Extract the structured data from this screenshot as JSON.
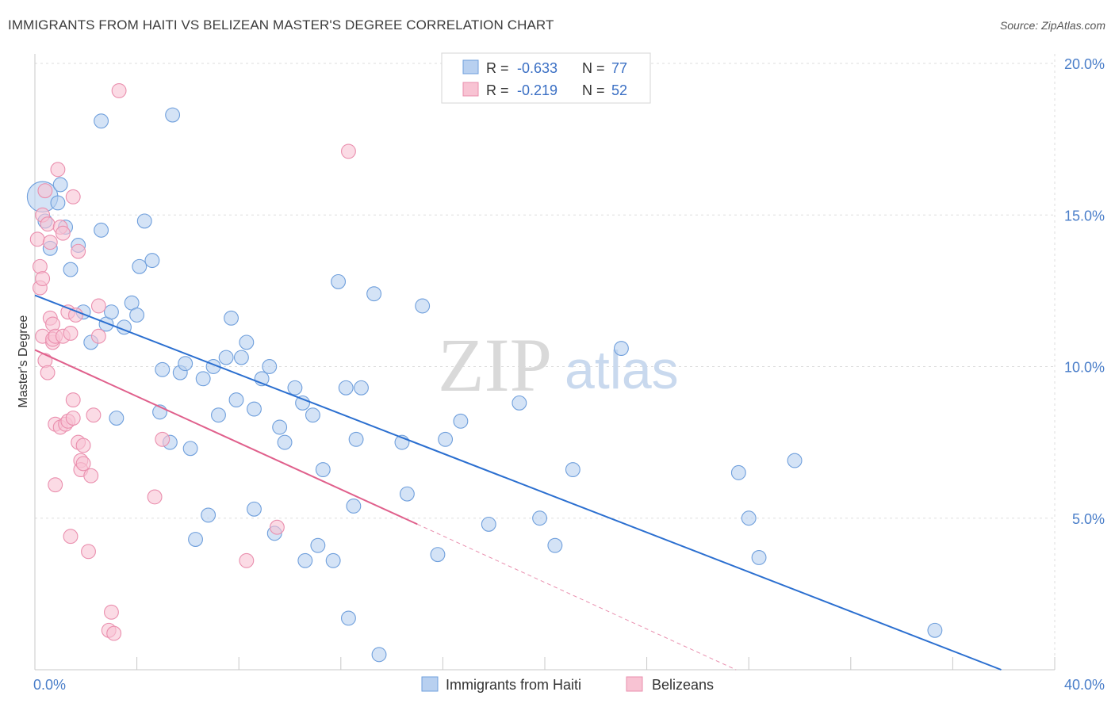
{
  "header": {
    "title": "IMMIGRANTS FROM HAITI VS BELIZEAN MASTER'S DEGREE CORRELATION CHART",
    "source": "Source: ZipAtlas.com"
  },
  "watermark": {
    "zip": "ZIP",
    "atlas": "atlas"
  },
  "colors": {
    "blue_fill": "#b8d0f0",
    "blue_stroke": "#6f9fdc",
    "blue_line": "#2b6fd0",
    "pink_fill": "#f8c3d3",
    "pink_stroke": "#ea8fae",
    "pink_line": "#e0608c",
    "grid": "#dddddd",
    "tick_text": "#4a7ec9"
  },
  "legend_top": {
    "r_label": "R =",
    "n_label": "N =",
    "rows": [
      {
        "r": "-0.633",
        "n": "77"
      },
      {
        "r": "-0.219",
        "n": "52"
      }
    ]
  },
  "legend_bottom": [
    "Immigrants from Haiti",
    "Belizeans"
  ],
  "chart_data": {
    "type": "scatter",
    "ylabel": "Master's Degree",
    "xlim": [
      0,
      40
    ],
    "ylim": [
      0,
      20
    ],
    "x_tick_labels": [
      {
        "value": 0,
        "label": "0.0%"
      },
      {
        "value": 40,
        "label": "40.0%"
      }
    ],
    "y_tick_labels": [
      {
        "value": 5,
        "label": "5.0%"
      },
      {
        "value": 10,
        "label": "10.0%"
      },
      {
        "value": 15,
        "label": "15.0%"
      },
      {
        "value": 20,
        "label": "20.0%"
      }
    ],
    "grid": true,
    "legend_position": "top-center",
    "series": [
      {
        "name": "Immigrants from Haiti",
        "r": -0.633,
        "n": 77,
        "trend": {
          "x": [
            0,
            37.9
          ],
          "y": [
            12.35,
            0
          ]
        },
        "points": [
          [
            0.3,
            15.6,
            26
          ],
          [
            0.4,
            14.8,
            12
          ],
          [
            0.6,
            13.9,
            12
          ],
          [
            0.9,
            15.4,
            12
          ],
          [
            1.0,
            16.0,
            12
          ],
          [
            1.2,
            14.6,
            12
          ],
          [
            1.4,
            13.2,
            12
          ],
          [
            1.7,
            14.0,
            12
          ],
          [
            1.9,
            11.8,
            12
          ],
          [
            2.2,
            10.8,
            12
          ],
          [
            2.6,
            18.1,
            12
          ],
          [
            2.6,
            14.5,
            12
          ],
          [
            2.8,
            11.4,
            12
          ],
          [
            3.0,
            11.8,
            12
          ],
          [
            3.2,
            8.3,
            12
          ],
          [
            3.5,
            11.3,
            12
          ],
          [
            3.8,
            12.1,
            12
          ],
          [
            4.0,
            11.7,
            12
          ],
          [
            4.1,
            13.3,
            12
          ],
          [
            4.3,
            14.8,
            12
          ],
          [
            4.6,
            13.5,
            12
          ],
          [
            4.9,
            8.5,
            12
          ],
          [
            5.0,
            9.9,
            12
          ],
          [
            5.3,
            7.5,
            12
          ],
          [
            5.4,
            18.3,
            12
          ],
          [
            5.7,
            9.8,
            12
          ],
          [
            5.9,
            10.1,
            12
          ],
          [
            6.1,
            7.3,
            12
          ],
          [
            6.3,
            4.3,
            12
          ],
          [
            6.6,
            9.6,
            12
          ],
          [
            6.8,
            5.1,
            12
          ],
          [
            7.0,
            10.0,
            12
          ],
          [
            7.2,
            8.4,
            12
          ],
          [
            7.5,
            10.3,
            12
          ],
          [
            7.7,
            11.6,
            12
          ],
          [
            7.9,
            8.9,
            12
          ],
          [
            8.1,
            10.3,
            12
          ],
          [
            8.3,
            10.8,
            12
          ],
          [
            8.6,
            8.6,
            12
          ],
          [
            8.6,
            5.3,
            12
          ],
          [
            8.9,
            9.6,
            12
          ],
          [
            9.2,
            10.0,
            12
          ],
          [
            9.4,
            4.5,
            12
          ],
          [
            9.6,
            8.0,
            12
          ],
          [
            9.8,
            7.5,
            12
          ],
          [
            10.2,
            9.3,
            12
          ],
          [
            10.5,
            8.8,
            12
          ],
          [
            10.6,
            3.6,
            12
          ],
          [
            10.9,
            8.4,
            12
          ],
          [
            11.1,
            4.1,
            12
          ],
          [
            11.3,
            6.6,
            12
          ],
          [
            11.7,
            3.6,
            12
          ],
          [
            11.9,
            12.8,
            12
          ],
          [
            12.2,
            9.3,
            12
          ],
          [
            12.3,
            1.7,
            12
          ],
          [
            12.5,
            5.4,
            12
          ],
          [
            12.6,
            7.6,
            12
          ],
          [
            12.8,
            9.3,
            12
          ],
          [
            13.3,
            12.4,
            12
          ],
          [
            13.5,
            0.5,
            12
          ],
          [
            14.4,
            7.5,
            12
          ],
          [
            14.6,
            5.8,
            12
          ],
          [
            15.2,
            12.0,
            12
          ],
          [
            15.8,
            3.8,
            12
          ],
          [
            16.1,
            7.6,
            12
          ],
          [
            16.7,
            8.2,
            12
          ],
          [
            17.8,
            4.8,
            12
          ],
          [
            19.0,
            8.8,
            12
          ],
          [
            19.8,
            5.0,
            12
          ],
          [
            20.4,
            4.1,
            12
          ],
          [
            21.1,
            6.6,
            12
          ],
          [
            23.0,
            10.6,
            12
          ],
          [
            27.6,
            6.5,
            12
          ],
          [
            28.0,
            5.0,
            12
          ],
          [
            28.4,
            3.7,
            12
          ],
          [
            29.8,
            6.9,
            12
          ],
          [
            35.3,
            1.3,
            12
          ]
        ]
      },
      {
        "name": "Belizeans",
        "r": -0.219,
        "n": 52,
        "trend": {
          "x": [
            0,
            15.0
          ],
          "y": [
            10.55,
            4.8
          ]
        },
        "trend_extension": {
          "x": [
            15.0,
            27.5
          ],
          "y": [
            4.8,
            0
          ]
        },
        "points": [
          [
            0.1,
            14.2,
            12
          ],
          [
            0.2,
            13.3,
            12
          ],
          [
            0.2,
            12.6,
            12
          ],
          [
            0.3,
            12.9,
            12
          ],
          [
            0.3,
            11.0,
            12
          ],
          [
            0.3,
            15.0,
            12
          ],
          [
            0.4,
            15.8,
            12
          ],
          [
            0.4,
            10.2,
            12
          ],
          [
            0.5,
            14.7,
            12
          ],
          [
            0.5,
            9.8,
            12
          ],
          [
            0.6,
            11.6,
            12
          ],
          [
            0.6,
            14.1,
            12
          ],
          [
            0.7,
            10.8,
            12
          ],
          [
            0.7,
            11.4,
            12
          ],
          [
            0.7,
            10.9,
            12
          ],
          [
            0.8,
            11.0,
            12
          ],
          [
            0.8,
            8.1,
            12
          ],
          [
            0.8,
            6.1,
            12
          ],
          [
            0.9,
            16.5,
            12
          ],
          [
            1.0,
            8.0,
            12
          ],
          [
            1.0,
            14.6,
            12
          ],
          [
            1.1,
            11.0,
            12
          ],
          [
            1.1,
            14.4,
            12
          ],
          [
            1.2,
            8.1,
            12
          ],
          [
            1.3,
            8.2,
            12
          ],
          [
            1.3,
            11.8,
            12
          ],
          [
            1.4,
            4.4,
            12
          ],
          [
            1.4,
            11.1,
            12
          ],
          [
            1.5,
            15.6,
            12
          ],
          [
            1.5,
            8.3,
            12
          ],
          [
            1.5,
            8.9,
            12
          ],
          [
            1.6,
            11.7,
            12
          ],
          [
            1.7,
            13.8,
            12
          ],
          [
            1.7,
            7.5,
            12
          ],
          [
            1.8,
            6.9,
            12
          ],
          [
            1.8,
            6.6,
            12
          ],
          [
            1.9,
            6.8,
            12
          ],
          [
            1.9,
            7.4,
            12
          ],
          [
            2.1,
            3.9,
            12
          ],
          [
            2.2,
            6.4,
            12
          ],
          [
            2.3,
            8.4,
            12
          ],
          [
            2.5,
            11.0,
            12
          ],
          [
            2.5,
            12.0,
            12
          ],
          [
            2.9,
            1.3,
            12
          ],
          [
            3.0,
            1.9,
            12
          ],
          [
            3.1,
            1.2,
            12
          ],
          [
            3.3,
            19.1,
            12
          ],
          [
            4.7,
            5.7,
            12
          ],
          [
            5.0,
            7.6,
            12
          ],
          [
            8.3,
            3.6,
            12
          ],
          [
            9.5,
            4.7,
            12
          ],
          [
            12.3,
            17.1,
            12
          ]
        ]
      }
    ]
  }
}
